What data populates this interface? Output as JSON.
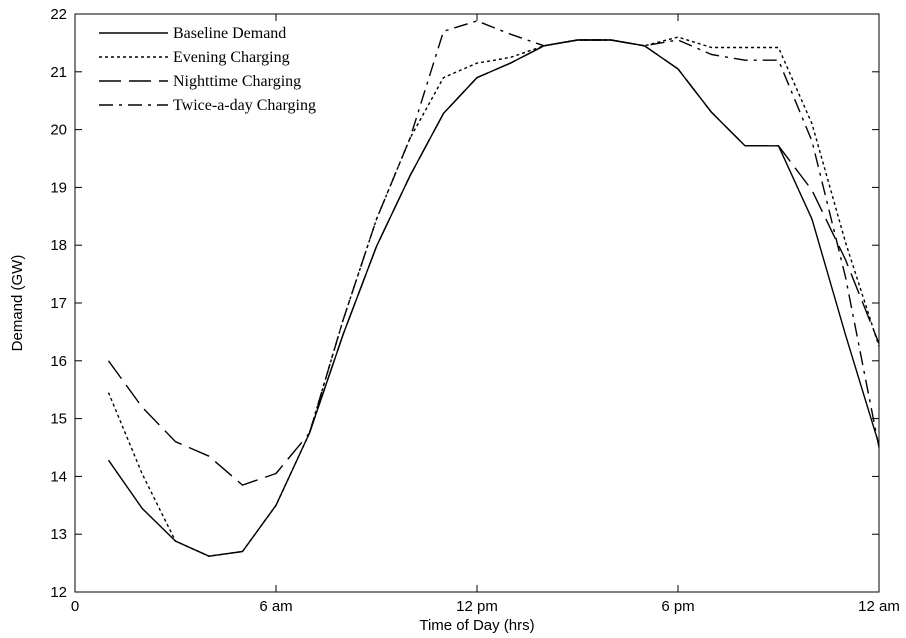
{
  "chart_data": {
    "type": "line",
    "title": "",
    "xlabel": "Time of Day (hrs)",
    "ylabel": "Demand (GW)",
    "xlim": [
      0,
      24
    ],
    "ylim": [
      12,
      22
    ],
    "xticks": [
      {
        "value": 0,
        "label": "0"
      },
      {
        "value": 6,
        "label": "6 am"
      },
      {
        "value": 12,
        "label": "12 pm"
      },
      {
        "value": 18,
        "label": "6 pm"
      },
      {
        "value": 24,
        "label": "12 am"
      }
    ],
    "yticks": [
      12,
      13,
      14,
      15,
      16,
      17,
      18,
      19,
      20,
      21,
      22
    ],
    "grid": false,
    "legend_position": "top-left",
    "x": [
      1,
      2,
      3,
      4,
      5,
      6,
      7,
      8,
      9,
      10,
      11,
      12,
      13,
      14,
      15,
      16,
      17,
      18,
      19,
      20,
      21,
      22,
      23,
      24
    ],
    "series": [
      {
        "name": "Baseline Demand",
        "dash": "solid",
        "values": [
          14.28,
          13.45,
          12.88,
          12.62,
          12.7,
          13.5,
          14.75,
          16.45,
          17.98,
          19.2,
          20.28,
          20.9,
          21.15,
          21.45,
          21.55,
          21.55,
          21.45,
          21.05,
          20.3,
          19.72,
          19.72,
          18.45,
          16.45,
          14.55
        ]
      },
      {
        "name": "Evening Charging",
        "dash": "dotted",
        "values": [
          15.45,
          14.05,
          12.88,
          12.62,
          12.7,
          13.5,
          14.75,
          16.7,
          18.45,
          19.85,
          20.9,
          21.15,
          21.25,
          21.45,
          21.55,
          21.55,
          21.45,
          21.6,
          21.42,
          21.42,
          21.42,
          20.1,
          18.05,
          16.25
        ]
      },
      {
        "name": "Nighttime Charging",
        "dash": "longdash",
        "values": [
          16.0,
          15.2,
          14.6,
          14.35,
          13.85,
          14.05,
          14.75,
          16.45,
          17.98,
          19.2,
          20.28,
          20.9,
          21.15,
          21.45,
          21.55,
          21.55,
          21.45,
          21.05,
          20.3,
          19.72,
          19.72,
          18.95,
          17.75,
          16.3
        ]
      },
      {
        "name": "Twice-a-day Charging",
        "dash": "dashdot",
        "values": [
          null,
          null,
          null,
          null,
          null,
          null,
          14.75,
          16.7,
          18.45,
          19.85,
          21.7,
          21.88,
          21.65,
          21.45,
          21.55,
          21.55,
          21.45,
          21.55,
          21.3,
          21.2,
          21.2,
          19.8,
          17.45,
          14.5
        ]
      }
    ]
  }
}
